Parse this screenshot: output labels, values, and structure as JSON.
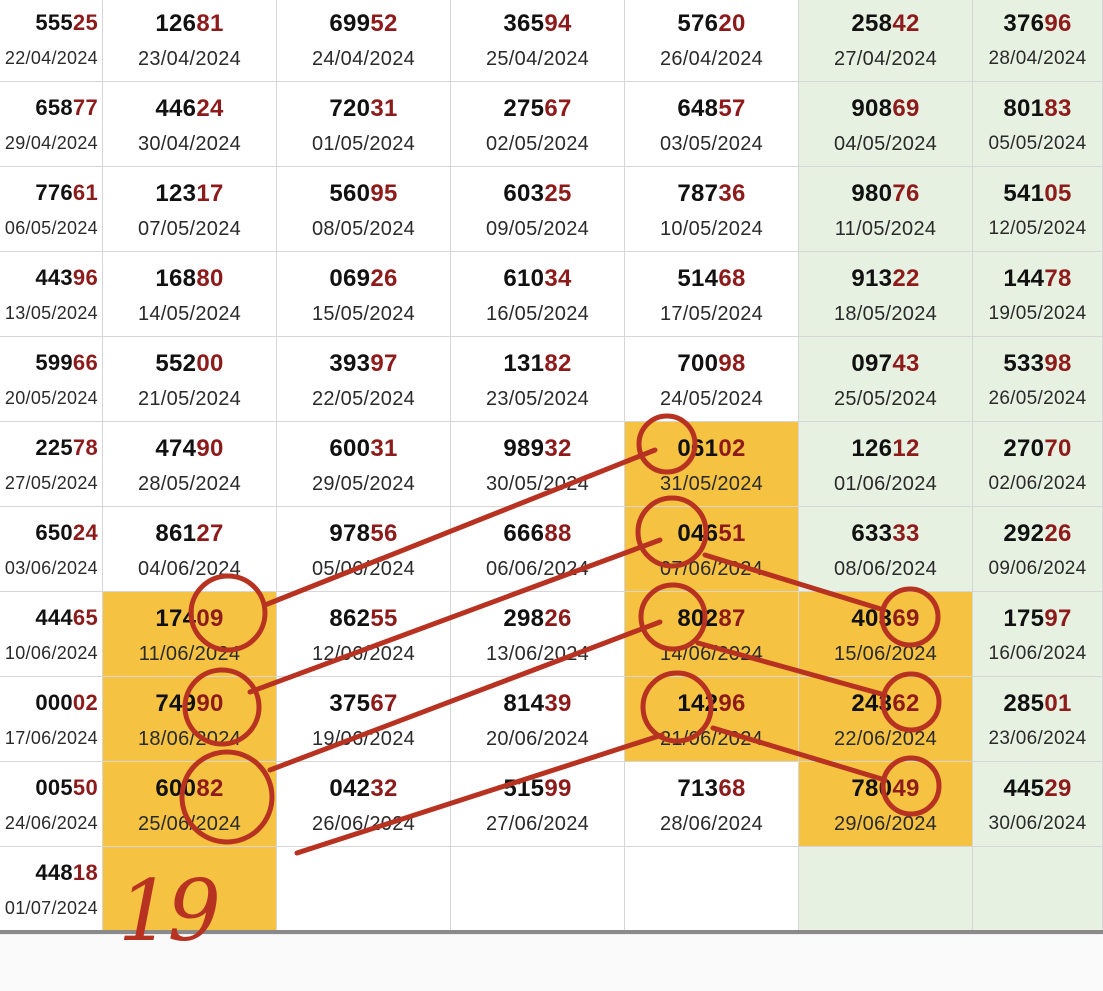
{
  "table": {
    "colors": {
      "highlight": "#f5c242",
      "green_column": "#e7f1e1",
      "tail_digits": "#8e1b1b",
      "annotation": "#b83222"
    },
    "green_columns": [
      5,
      6
    ],
    "rows": [
      [
        {
          "n": "55525",
          "d": "22/04/2024",
          "h": false
        },
        {
          "n": "12681",
          "d": "23/04/2024",
          "h": false
        },
        {
          "n": "69952",
          "d": "24/04/2024",
          "h": false
        },
        {
          "n": "36594",
          "d": "25/04/2024",
          "h": false
        },
        {
          "n": "57620",
          "d": "26/04/2024",
          "h": false
        },
        {
          "n": "25842",
          "d": "27/04/2024",
          "h": false
        },
        {
          "n": "37696",
          "d": "28/04/2024",
          "h": false
        }
      ],
      [
        {
          "n": "65877",
          "d": "29/04/2024",
          "h": false
        },
        {
          "n": "44624",
          "d": "30/04/2024",
          "h": false
        },
        {
          "n": "72031",
          "d": "01/05/2024",
          "h": false
        },
        {
          "n": "27567",
          "d": "02/05/2024",
          "h": false
        },
        {
          "n": "64857",
          "d": "03/05/2024",
          "h": false
        },
        {
          "n": "90869",
          "d": "04/05/2024",
          "h": false
        },
        {
          "n": "80183",
          "d": "05/05/2024",
          "h": false
        }
      ],
      [
        {
          "n": "77661",
          "d": "06/05/2024",
          "h": false
        },
        {
          "n": "12317",
          "d": "07/05/2024",
          "h": false
        },
        {
          "n": "56095",
          "d": "08/05/2024",
          "h": false
        },
        {
          "n": "60325",
          "d": "09/05/2024",
          "h": false
        },
        {
          "n": "78736",
          "d": "10/05/2024",
          "h": false
        },
        {
          "n": "98076",
          "d": "11/05/2024",
          "h": false
        },
        {
          "n": "54105",
          "d": "12/05/2024",
          "h": false
        }
      ],
      [
        {
          "n": "44396",
          "d": "13/05/2024",
          "h": false
        },
        {
          "n": "16880",
          "d": "14/05/2024",
          "h": false
        },
        {
          "n": "06926",
          "d": "15/05/2024",
          "h": false
        },
        {
          "n": "61034",
          "d": "16/05/2024",
          "h": false
        },
        {
          "n": "51468",
          "d": "17/05/2024",
          "h": false
        },
        {
          "n": "91322",
          "d": "18/05/2024",
          "h": false
        },
        {
          "n": "14478",
          "d": "19/05/2024",
          "h": false
        }
      ],
      [
        {
          "n": "59966",
          "d": "20/05/2024",
          "h": false
        },
        {
          "n": "55200",
          "d": "21/05/2024",
          "h": false
        },
        {
          "n": "39397",
          "d": "22/05/2024",
          "h": false
        },
        {
          "n": "13182",
          "d": "23/05/2024",
          "h": false
        },
        {
          "n": "70098",
          "d": "24/05/2024",
          "h": false
        },
        {
          "n": "09743",
          "d": "25/05/2024",
          "h": false
        },
        {
          "n": "53398",
          "d": "26/05/2024",
          "h": false
        }
      ],
      [
        {
          "n": "22578",
          "d": "27/05/2024",
          "h": false
        },
        {
          "n": "47490",
          "d": "28/05/2024",
          "h": false
        },
        {
          "n": "60031",
          "d": "29/05/2024",
          "h": false
        },
        {
          "n": "98932",
          "d": "30/05/2024",
          "h": false
        },
        {
          "n": "06102",
          "d": "31/05/2024",
          "h": true
        },
        {
          "n": "12612",
          "d": "01/06/2024",
          "h": false
        },
        {
          "n": "27070",
          "d": "02/06/2024",
          "h": false
        }
      ],
      [
        {
          "n": "65024",
          "d": "03/06/2024",
          "h": false
        },
        {
          "n": "86127",
          "d": "04/06/2024",
          "h": false
        },
        {
          "n": "97856",
          "d": "05/06/2024",
          "h": false
        },
        {
          "n": "66688",
          "d": "06/06/2024",
          "h": false
        },
        {
          "n": "04651",
          "d": "07/06/2024",
          "h": true
        },
        {
          "n": "63333",
          "d": "08/06/2024",
          "h": false
        },
        {
          "n": "29226",
          "d": "09/06/2024",
          "h": false
        }
      ],
      [
        {
          "n": "44465",
          "d": "10/06/2024",
          "h": false
        },
        {
          "n": "17409",
          "d": "11/06/2024",
          "h": true
        },
        {
          "n": "86255",
          "d": "12/06/2024",
          "h": false
        },
        {
          "n": "29826",
          "d": "13/06/2024",
          "h": false
        },
        {
          "n": "80287",
          "d": "14/06/2024",
          "h": true
        },
        {
          "n": "40369",
          "d": "15/06/2024",
          "h": true
        },
        {
          "n": "17597",
          "d": "16/06/2024",
          "h": false
        }
      ],
      [
        {
          "n": "00002",
          "d": "17/06/2024",
          "h": false
        },
        {
          "n": "74990",
          "d": "18/06/2024",
          "h": true
        },
        {
          "n": "37567",
          "d": "19/06/2024",
          "h": false
        },
        {
          "n": "81439",
          "d": "20/06/2024",
          "h": false
        },
        {
          "n": "14296",
          "d": "21/06/2024",
          "h": true
        },
        {
          "n": "24362",
          "d": "22/06/2024",
          "h": true
        },
        {
          "n": "28501",
          "d": "23/06/2024",
          "h": false
        }
      ],
      [
        {
          "n": "00550",
          "d": "24/06/2024",
          "h": false
        },
        {
          "n": "60082",
          "d": "25/06/2024",
          "h": true
        },
        {
          "n": "04232",
          "d": "26/06/2024",
          "h": false
        },
        {
          "n": "51599",
          "d": "27/06/2024",
          "h": false
        },
        {
          "n": "71368",
          "d": "28/06/2024",
          "h": false
        },
        {
          "n": "78049",
          "d": "29/06/2024",
          "h": true
        },
        {
          "n": "44529",
          "d": "30/06/2024",
          "h": false
        }
      ],
      [
        {
          "n": "44818",
          "d": "01/07/2024",
          "h": false
        },
        {
          "n": "",
          "d": "",
          "h": true
        },
        {
          "n": "",
          "d": "",
          "h": false
        },
        {
          "n": "",
          "d": "",
          "h": false
        },
        {
          "n": "",
          "d": "",
          "h": false
        },
        {
          "n": "",
          "d": "",
          "h": false
        },
        {
          "n": "",
          "d": "",
          "h": false
        }
      ]
    ]
  },
  "annotation": {
    "handwritten_note": "19"
  }
}
